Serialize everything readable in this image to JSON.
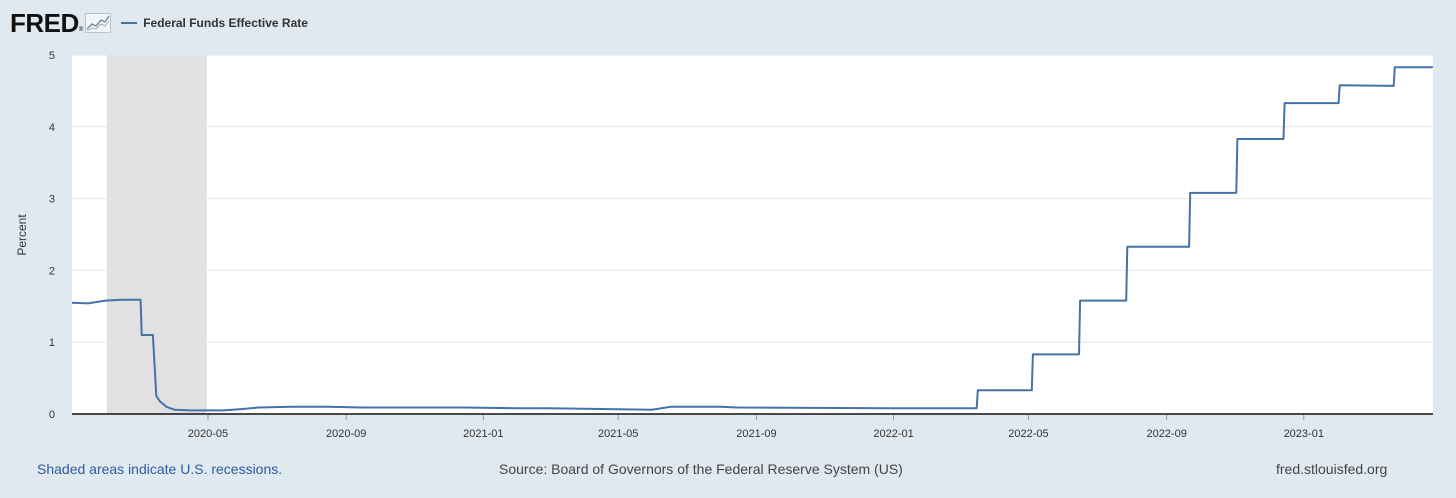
{
  "header": {
    "logo_text": "FRED",
    "logo_reg": "®",
    "series_label": "Federal Funds Effective Rate"
  },
  "footer": {
    "shaded_note": "Shaded areas indicate U.S. recessions.",
    "source": "Source: Board of Governors of the Federal Reserve System (US)",
    "site": "fred.stlouisfed.org"
  },
  "colors": {
    "line": "#4572a7",
    "recession": "#e1e1e1",
    "grid": "#e6e6e6",
    "page": "#e1e9f0"
  },
  "chart_data": {
    "type": "line",
    "title": "",
    "xlabel": "",
    "ylabel": "Percent",
    "ylim": [
      0,
      5
    ],
    "yticks": [
      "0",
      "1",
      "2",
      "3",
      "4",
      "5"
    ],
    "xlim": [
      "2020-01-01",
      "2023-04-26"
    ],
    "xticks": [
      "2020-05",
      "2020-09",
      "2021-01",
      "2021-05",
      "2021-09",
      "2022-01",
      "2022-05",
      "2022-09",
      "2023-01"
    ],
    "recessions": [
      {
        "start": "2020-02-01",
        "end": "2020-04-30"
      }
    ],
    "series": [
      {
        "name": "Federal Funds Effective Rate",
        "points": [
          [
            "2020-01-01",
            1.55
          ],
          [
            "2020-01-15",
            1.54
          ],
          [
            "2020-01-31",
            1.58
          ],
          [
            "2020-02-14",
            1.59
          ],
          [
            "2020-03-02",
            1.59
          ],
          [
            "2020-03-03",
            1.1
          ],
          [
            "2020-03-13",
            1.1
          ],
          [
            "2020-03-16",
            0.25
          ],
          [
            "2020-03-19",
            0.18
          ],
          [
            "2020-03-25",
            0.1
          ],
          [
            "2020-04-01",
            0.06
          ],
          [
            "2020-04-15",
            0.05
          ],
          [
            "2020-05-15",
            0.05
          ],
          [
            "2020-06-01",
            0.07
          ],
          [
            "2020-06-15",
            0.09
          ],
          [
            "2020-07-15",
            0.1
          ],
          [
            "2020-08-15",
            0.1
          ],
          [
            "2020-09-15",
            0.09
          ],
          [
            "2020-11-30",
            0.09
          ],
          [
            "2020-12-15",
            0.09
          ],
          [
            "2021-01-31",
            0.08
          ],
          [
            "2021-02-28",
            0.08
          ],
          [
            "2021-05-31",
            0.06
          ],
          [
            "2021-06-17",
            0.1
          ],
          [
            "2021-07-31",
            0.1
          ],
          [
            "2021-08-15",
            0.09
          ],
          [
            "2021-12-31",
            0.08
          ],
          [
            "2022-03-16",
            0.08
          ],
          [
            "2022-03-17",
            0.33
          ],
          [
            "2022-05-04",
            0.33
          ],
          [
            "2022-05-05",
            0.83
          ],
          [
            "2022-06-15",
            0.83
          ],
          [
            "2022-06-16",
            1.58
          ],
          [
            "2022-07-27",
            1.58
          ],
          [
            "2022-07-28",
            2.33
          ],
          [
            "2022-09-21",
            2.33
          ],
          [
            "2022-09-22",
            3.08
          ],
          [
            "2022-11-02",
            3.08
          ],
          [
            "2022-11-03",
            3.83
          ],
          [
            "2022-12-14",
            3.83
          ],
          [
            "2022-12-15",
            4.33
          ],
          [
            "2023-02-01",
            4.33
          ],
          [
            "2023-02-02",
            4.58
          ],
          [
            "2023-03-22",
            4.57
          ],
          [
            "2023-03-23",
            4.83
          ],
          [
            "2023-04-26",
            4.83
          ]
        ]
      }
    ]
  }
}
